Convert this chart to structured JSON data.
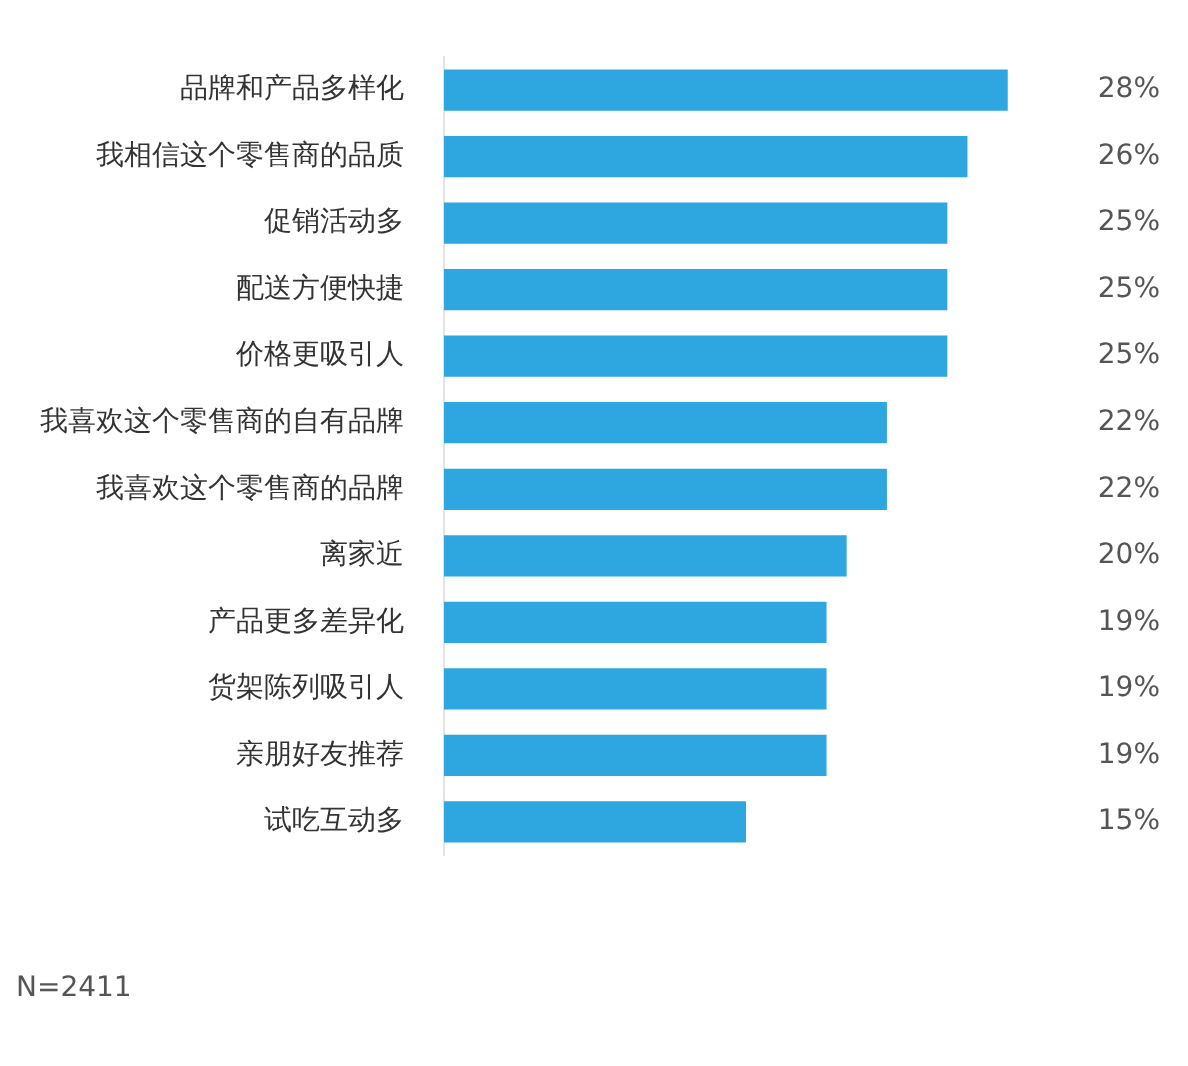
{
  "chart_data": {
    "type": "bar",
    "orientation": "horizontal",
    "categories": [
      "品牌和产品多样化",
      "我相信这个零售商的品质",
      "促销活动多",
      "配送方便快捷",
      "价格更吸引人",
      "我喜欢这个零售商的自有品牌",
      "我喜欢这个零售商的品牌",
      "离家近",
      "产品更多差异化",
      "货架陈列吸引人",
      "亲朋好友推荐",
      "试吃互动多"
    ],
    "values": [
      28,
      26,
      25,
      25,
      25,
      22,
      22,
      20,
      19,
      19,
      19,
      15
    ],
    "value_labels": [
      "28%",
      "26%",
      "25%",
      "25%",
      "25%",
      "22%",
      "22%",
      "20%",
      "19%",
      "19%",
      "19%",
      "15%"
    ],
    "color": "#2ea6df",
    "grid": false,
    "legend": false,
    "annotations": [
      "N=2411"
    ]
  }
}
